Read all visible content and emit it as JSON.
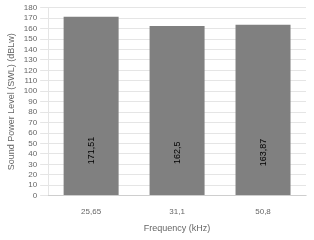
{
  "chart_data": {
    "type": "bar",
    "categories": [
      "25,65",
      "31,1",
      "50,8"
    ],
    "values": [
      171.51,
      162.5,
      163.87
    ],
    "value_labels": [
      "171,51",
      "162,5",
      "163,87"
    ],
    "data_labels": true,
    "color": "#808080",
    "xlabel": "Frequency (kHz)",
    "ylabel": "Sound Power Level (SWL) (dBLw)",
    "ylim": [
      0,
      180
    ],
    "yticks": [
      0,
      10,
      20,
      30,
      40,
      50,
      60,
      70,
      80,
      90,
      100,
      110,
      120,
      130,
      140,
      150,
      160,
      170,
      180
    ],
    "grid": true
  }
}
